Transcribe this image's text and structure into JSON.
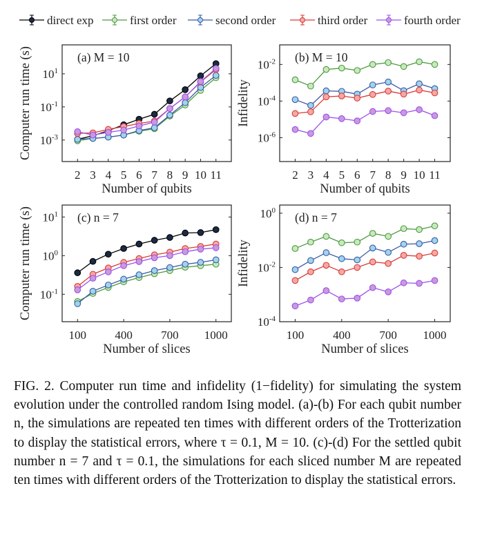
{
  "legend": [
    {
      "name": "direct exp",
      "line": "#000000",
      "fill": "#1b2a44"
    },
    {
      "name": "first order",
      "line": "#4c9a3c",
      "fill": "#c9e8c0"
    },
    {
      "name": "second order",
      "line": "#3b58a8",
      "fill": "#9fd4ea"
    },
    {
      "name": "third order",
      "line": "#d93a35",
      "fill": "#f4a8a6"
    },
    {
      "name": "fourth order",
      "line": "#9b4ff0",
      "fill": "#c99ad9"
    }
  ],
  "chart_data": [
    {
      "type": "line",
      "panel_label": "(a) M = 10",
      "xlabel": "Number of qubits",
      "ylabel": "Computer run time (s)",
      "yscale": "log",
      "xlim": [
        1,
        12
      ],
      "ylim": [
        5e-05,
        560
      ],
      "x_ticks": [
        2,
        3,
        4,
        5,
        6,
        7,
        8,
        9,
        10,
        11
      ],
      "y_ticks": [
        10,
        0.1,
        0.001
      ],
      "y_tick_labels": [
        "10^1",
        "10^-1",
        "10^-3"
      ],
      "x": [
        2,
        3,
        4,
        5,
        6,
        7,
        8,
        9,
        10,
        11
      ],
      "series": [
        {
          "name": "direct exp",
          "values": [
            0.0011,
            0.0018,
            0.0037,
            0.0083,
            0.018,
            0.036,
            0.23,
            1.1,
            7.5,
            41
          ]
        },
        {
          "name": "first order",
          "values": [
            0.0009,
            0.00125,
            0.0015,
            0.002,
            0.0034,
            0.0048,
            0.028,
            0.13,
            1.0,
            5.8
          ]
        },
        {
          "name": "second order",
          "values": [
            0.0011,
            0.00125,
            0.0015,
            0.002,
            0.0037,
            0.0055,
            0.032,
            0.18,
            1.5,
            8
          ]
        },
        {
          "name": "third order",
          "values": [
            0.0025,
            0.0027,
            0.0044,
            0.0065,
            0.01,
            0.014,
            0.08,
            0.4,
            3.2,
            18
          ]
        },
        {
          "name": "fourth order",
          "values": [
            0.0032,
            0.002,
            0.0029,
            0.004,
            0.007,
            0.012,
            0.08,
            0.4,
            3.4,
            21
          ]
        }
      ]
    },
    {
      "type": "line",
      "panel_label": "(b) M = 10",
      "xlabel": "Number of qubits",
      "ylabel": "Infidelity",
      "yscale": "log",
      "xlim": [
        1,
        12
      ],
      "ylim": [
        5e-08,
        0.117
      ],
      "x_ticks": [
        2,
        3,
        4,
        5,
        6,
        7,
        8,
        9,
        10,
        11
      ],
      "y_ticks": [
        0.01,
        0.0001,
        1e-06
      ],
      "y_tick_labels": [
        "10^-2",
        "10^-4",
        "10^-6"
      ],
      "x": [
        2,
        3,
        4,
        5,
        6,
        7,
        8,
        9,
        10,
        11
      ],
      "series": [
        {
          "name": "first order",
          "values": [
            0.00145,
            0.00066,
            0.0053,
            0.0063,
            0.0047,
            0.01,
            0.0126,
            0.0077,
            0.014,
            0.01
          ]
        },
        {
          "name": "second order",
          "values": [
            0.00012,
            5.8e-05,
            0.00036,
            0.00034,
            0.00024,
            0.00076,
            0.0011,
            0.00037,
            0.00088,
            0.00048
          ]
        },
        {
          "name": "third order",
          "values": [
            2.1e-05,
            2.6e-05,
            0.00017,
            0.00019,
            0.000145,
            0.00023,
            0.00035,
            0.00024,
            0.0004,
            0.00028
          ]
        },
        {
          "name": "fourth order",
          "values": [
            2.8e-06,
            1.7e-06,
            1.35e-05,
            1.1e-05,
            8.3e-06,
            2.7e-05,
            3e-05,
            2.3e-05,
            3.4e-05,
            1.6e-05
          ]
        }
      ]
    },
    {
      "type": "line",
      "panel_label": "(c) n = 7",
      "xlabel": "Number of slices",
      "ylabel": "Computer run time (s)",
      "yscale": "log",
      "xlim": [
        0,
        1100
      ],
      "ylim": [
        0.0195,
        20.4
      ],
      "x_ticks": [
        100,
        400,
        700,
        1000
      ],
      "y_ticks": [
        10,
        1,
        0.1
      ],
      "y_tick_labels": [
        "10^1",
        "10^0",
        "10^-1"
      ],
      "x": [
        100,
        200,
        300,
        400,
        500,
        600,
        700,
        800,
        900,
        1000
      ],
      "series": [
        {
          "name": "direct exp",
          "values": [
            0.36,
            0.71,
            1.09,
            1.53,
            2.0,
            2.5,
            2.95,
            3.85,
            3.95,
            4.7
          ]
        },
        {
          "name": "first order",
          "values": [
            0.065,
            0.105,
            0.15,
            0.21,
            0.27,
            0.34,
            0.41,
            0.5,
            0.55,
            0.6
          ]
        },
        {
          "name": "second order",
          "values": [
            0.057,
            0.12,
            0.174,
            0.246,
            0.32,
            0.41,
            0.49,
            0.6,
            0.67,
            0.78
          ]
        },
        {
          "name": "third order",
          "values": [
            0.16,
            0.33,
            0.48,
            0.67,
            0.84,
            1.05,
            1.23,
            1.53,
            1.73,
            2.0
          ]
        },
        {
          "name": "fourth order",
          "values": [
            0.13,
            0.26,
            0.38,
            0.55,
            0.7,
            0.88,
            1.0,
            1.26,
            1.47,
            1.6
          ]
        }
      ]
    },
    {
      "type": "line",
      "panel_label": "(d) n = 7",
      "xlabel": "Number of slices",
      "ylabel": "Infidelity",
      "yscale": "log",
      "xlim": [
        0,
        1100
      ],
      "ylim": [
        0.0001,
        2.0
      ],
      "x_ticks": [
        100,
        400,
        700,
        1000
      ],
      "y_ticks": [
        1,
        0.01,
        0.0001
      ],
      "y_tick_labels": [
        "10^0",
        "10^-2",
        "10^-4"
      ],
      "x": [
        100,
        200,
        300,
        400,
        500,
        600,
        700,
        800,
        900,
        1000
      ],
      "series": [
        {
          "name": "first order",
          "values": [
            0.05,
            0.086,
            0.14,
            0.081,
            0.086,
            0.18,
            0.14,
            0.27,
            0.25,
            0.34
          ]
        },
        {
          "name": "second order",
          "values": [
            0.0083,
            0.018,
            0.035,
            0.021,
            0.019,
            0.052,
            0.036,
            0.072,
            0.075,
            0.098
          ]
        },
        {
          "name": "third order",
          "values": [
            0.0033,
            0.0069,
            0.012,
            0.0069,
            0.01,
            0.016,
            0.014,
            0.028,
            0.026,
            0.034
          ]
        },
        {
          "name": "fourth order",
          "values": [
            0.00038,
            0.00063,
            0.0014,
            0.00069,
            0.00074,
            0.0018,
            0.00126,
            0.0027,
            0.0026,
            0.0033
          ]
        }
      ]
    }
  ],
  "caption": "FIG. 2.  Computer run time and infidelity (1−fidelity) for simulating the system evolution under the controlled random Ising model. (a)-(b) For each qubit number n, the simulations are repeated ten times with different orders of the Trotterization to display the statistical errors, where τ = 0.1, M = 10. (c)-(d) For the settled qubit number n = 7 and τ = 0.1, the simulations for each sliced number M are repeated ten times with different orders of the Trotterization to display the statistical errors."
}
